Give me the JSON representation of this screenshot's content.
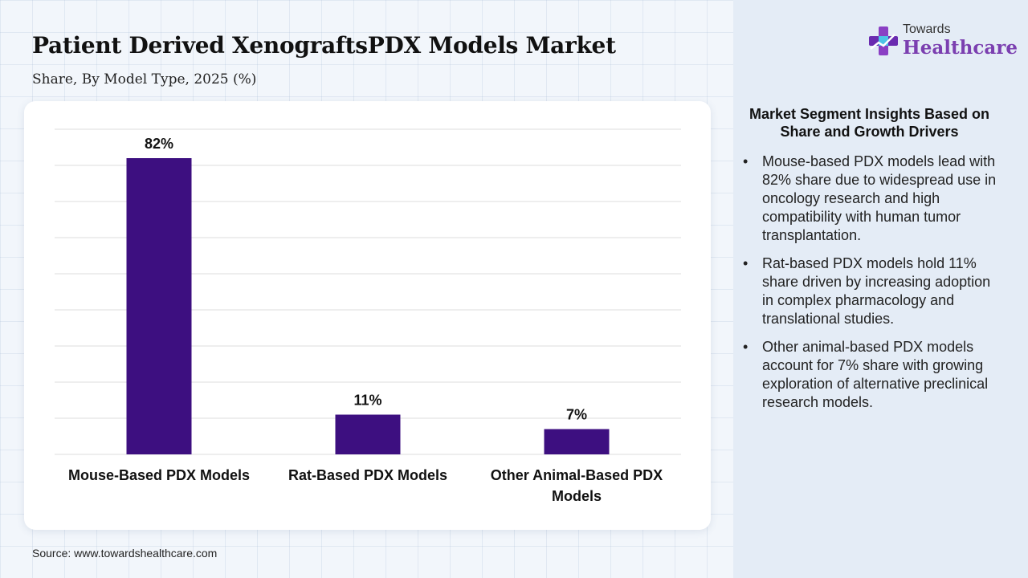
{
  "header": {
    "title": "Patient Derived XenograftsPDX Models Market",
    "subtitle": "Share, By Model Type, 2025 (%)"
  },
  "logo": {
    "top_text": "Towards",
    "main_text": "Healthcare",
    "icon": "medical-cross-icon"
  },
  "chart_data": {
    "type": "bar",
    "categories": [
      "Mouse-Based PDX Models",
      "Rat-Based PDX Models",
      "Other Animal-Based PDX Models"
    ],
    "values": [
      82,
      11,
      7
    ],
    "data_labels": [
      "82%",
      "11%",
      "7%"
    ],
    "ylim": [
      0,
      90
    ],
    "grid": true,
    "bar_color": "#3d0f80"
  },
  "insights": {
    "title": "Market Segment Insights Based on Share and Growth Drivers",
    "items": [
      "Mouse-based PDX models lead with 82% share due to widespread use in oncology research and high compatibility with human tumor transplantation.",
      "Rat-based PDX models hold 11% share driven by increasing adoption in complex pharmacology and translational studies.",
      "Other animal-based PDX models account for 7% share with growing exploration of alternative preclinical research models."
    ]
  },
  "footer": {
    "source": "Source: www.towardshealthcare.com"
  }
}
